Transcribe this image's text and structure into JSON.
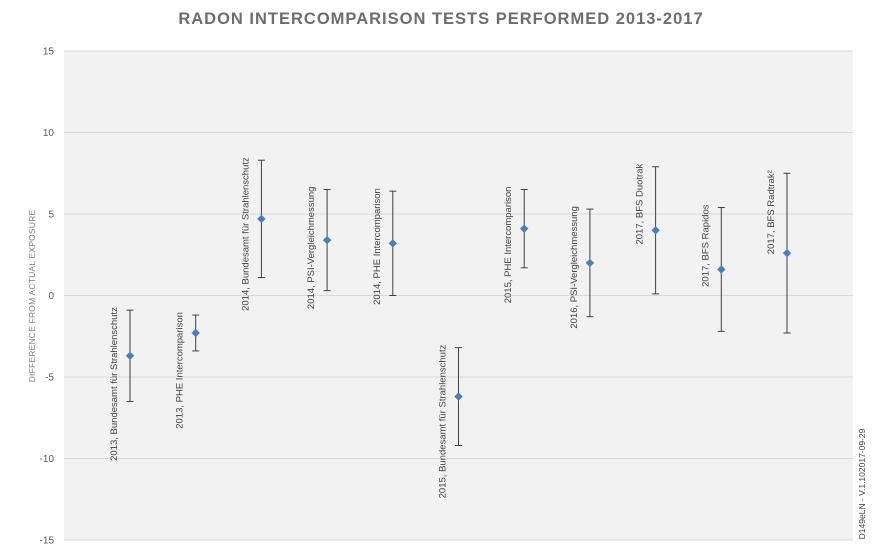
{
  "chart_data": {
    "type": "scatter",
    "title": "RADON INTERCOMPARISON TESTS PERFORMED 2013-2017",
    "xlabel": "",
    "ylabel": "DIFFERENCE FROM ACTUAL EXPOSURE",
    "ylim": [
      -15,
      15
    ],
    "yticks": [
      "15",
      "10",
      "5",
      "0",
      "-5",
      "-10",
      "-15"
    ],
    "ytick_values": [
      15,
      10,
      5,
      0,
      -5,
      -10,
      -15
    ],
    "grid": true,
    "legend": "none",
    "marker_color": "#4a7ebb",
    "errorbar_color": "#404040",
    "points": [
      {
        "label": "2013, Bundesamt für Strahlenschutz",
        "y": -3.7,
        "low": -6.5,
        "high": -0.9
      },
      {
        "label": "2013, PHE Intercomparison",
        "y": -2.3,
        "low": -3.4,
        "high": -1.2
      },
      {
        "label": "2014, Bundesamt für Strahlenschutz",
        "y": 4.7,
        "low": 1.1,
        "high": 8.3
      },
      {
        "label": "2014, PSI-Vergleichmessung",
        "y": 3.4,
        "low": 0.3,
        "high": 6.5
      },
      {
        "label": "2014, PHE Intercomparison",
        "y": 3.2,
        "low": 0.0,
        "high": 6.4
      },
      {
        "label": "2015, Bundesamt für Strahlenschutz",
        "y": -6.2,
        "low": -9.2,
        "high": -3.2
      },
      {
        "label": "2015, PHE Intercomparison",
        "y": 4.1,
        "low": 1.7,
        "high": 6.5
      },
      {
        "label": "2016, PSI-Vergleichmessung",
        "y": 2.0,
        "low": -1.3,
        "high": 5.3
      },
      {
        "label": "2017, BFS Duotrak",
        "y": 4.0,
        "low": 0.1,
        "high": 7.9
      },
      {
        "label": "2017, BFS Rapidos",
        "y": 1.6,
        "low": -2.2,
        "high": 5.4
      },
      {
        "label": "2017, BFS Radtrak²",
        "y": 2.6,
        "low": -2.3,
        "high": 7.5
      }
    ]
  },
  "side_note": "D149eLN - V.1.102017-09-29"
}
